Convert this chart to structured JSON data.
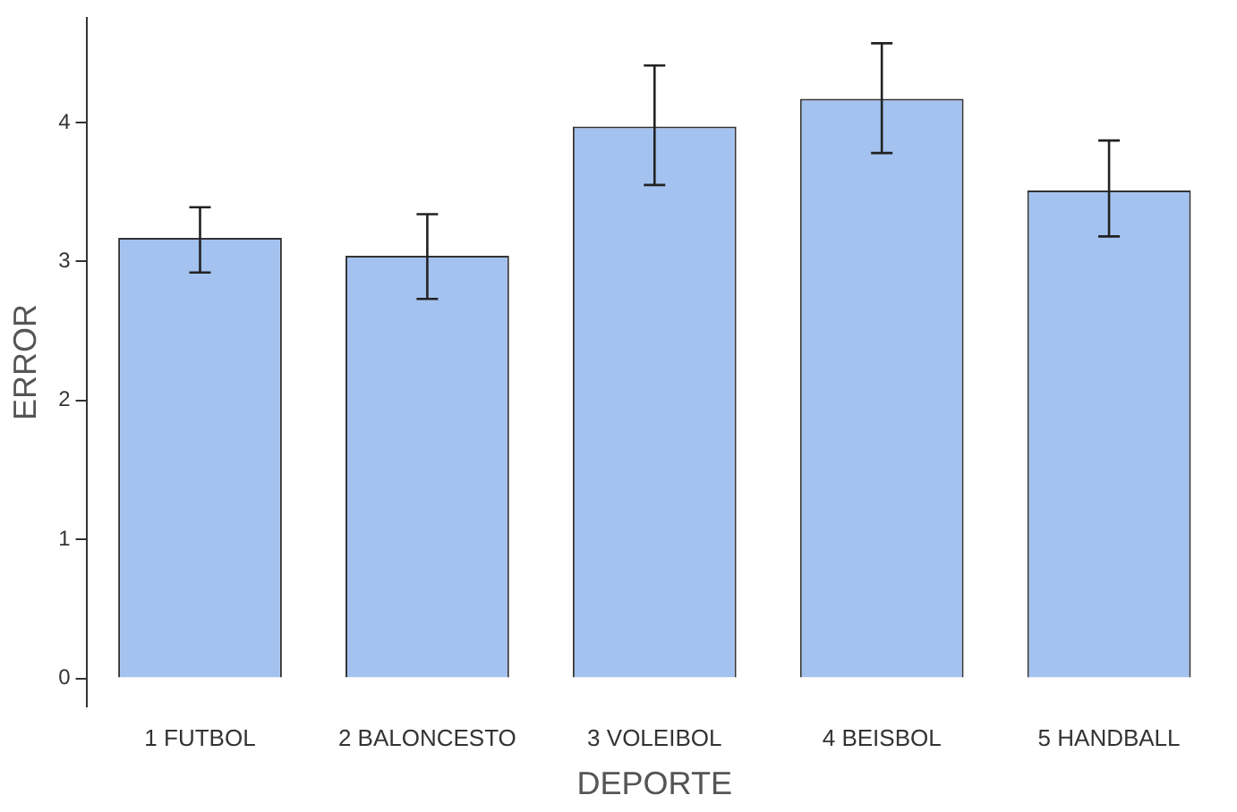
{
  "chart_data": {
    "type": "bar",
    "xlabel": "DEPORTE",
    "ylabel": "ERROR",
    "categories": [
      "1 FUTBOL",
      "2 BALONCESTO",
      "3 VOLEIBOL",
      "4 BEISBOL",
      "5 HANDBALL"
    ],
    "values": [
      3.17,
      3.04,
      3.97,
      4.17,
      3.51
    ],
    "errors": [
      [
        2.92,
        3.39
      ],
      [
        2.73,
        3.34
      ],
      [
        3.55,
        4.41
      ],
      [
        3.78,
        4.57
      ],
      [
        3.18,
        3.87
      ]
    ],
    "color": "#a4c2f0",
    "ylim": [
      -0.2,
      4.75
    ],
    "yticks": [
      0,
      1,
      2,
      3,
      4
    ],
    "grid": false,
    "legend": false
  }
}
